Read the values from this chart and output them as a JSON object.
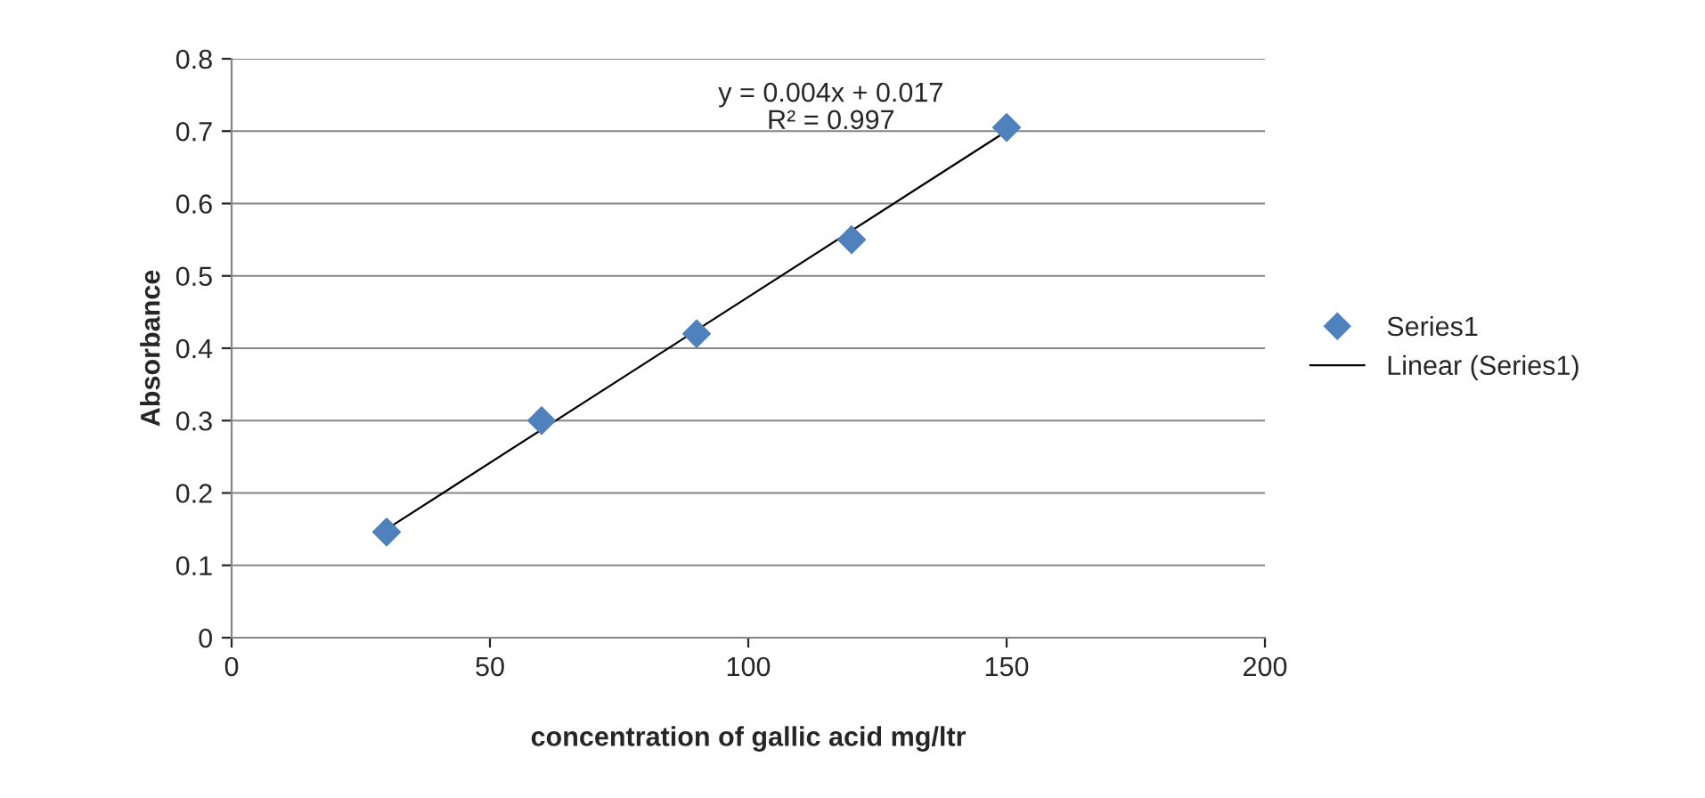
{
  "chart_data": {
    "type": "scatter",
    "xlabel": "concentration of gallic acid mg/ltr",
    "ylabel": "Absorbance",
    "x": [
      30,
      60,
      90,
      120,
      150
    ],
    "series": [
      {
        "name": "Series1",
        "color": "#4f81bd",
        "marker": "diamond",
        "values": [
          0.146,
          0.3,
          0.42,
          0.55,
          0.705
        ]
      },
      {
        "name": "Linear (Series1)",
        "type": "line",
        "color": "#000000",
        "marker": "none",
        "line_style": "solid",
        "x": [
          30,
          150
        ],
        "values": [
          0.15,
          0.7
        ]
      }
    ],
    "annotations": [
      "y = 0.004x + 0.017\nR² = 0.997"
    ],
    "xlim": [
      0,
      200
    ],
    "xticks": [
      0,
      50,
      100,
      150,
      200
    ],
    "ylim": [
      0,
      0.8
    ],
    "yticks": [
      0,
      0.1,
      0.2,
      0.3,
      0.4,
      0.5,
      0.6,
      0.7,
      0.8
    ],
    "grid": "y",
    "legend": "right"
  }
}
